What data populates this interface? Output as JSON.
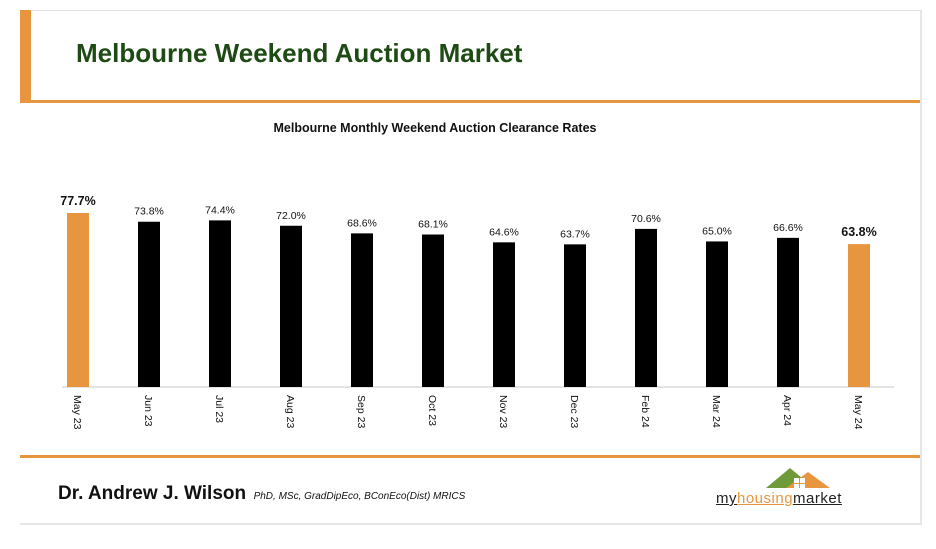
{
  "header": {
    "title": "Melbourne Weekend Auction Market"
  },
  "colors": {
    "accent": "#e8953f",
    "title_green": "#1e4a14",
    "bar": "#000000",
    "highlight_bar": "#e8953f"
  },
  "chart_data": {
    "type": "bar",
    "title": "Melbourne Monthly Weekend Auction Clearance Rates",
    "categories": [
      "May 23",
      "Jun 23",
      "Jul 23",
      "Aug 23",
      "Sep 23",
      "Oct 23",
      "Nov 23",
      "Dec 23",
      "Feb 24",
      "Mar 24",
      "Apr 24",
      "May 24"
    ],
    "values": [
      77.7,
      73.8,
      74.4,
      72.0,
      68.6,
      68.1,
      64.6,
      63.7,
      70.6,
      65.0,
      66.6,
      63.8
    ],
    "value_labels": [
      "77.7%",
      "73.8%",
      "74.4%",
      "72.0%",
      "68.6%",
      "68.1%",
      "64.6%",
      "63.7%",
      "70.6%",
      "65.0%",
      "66.6%",
      "63.8%"
    ],
    "highlighted": [
      0,
      11
    ],
    "xlabel": "",
    "ylabel": "",
    "ylim": [
      0,
      77.7
    ],
    "grid": false,
    "legend": "none"
  },
  "footer": {
    "author_name": "Dr. Andrew J. Wilson",
    "author_credentials": "PhD, MSc, GradDipEco, BConEco(Dist) MRICS",
    "logo": {
      "part_my": "my",
      "part_housing": "housing",
      "part_market": "market",
      "icon": "house-roof-icon"
    }
  }
}
